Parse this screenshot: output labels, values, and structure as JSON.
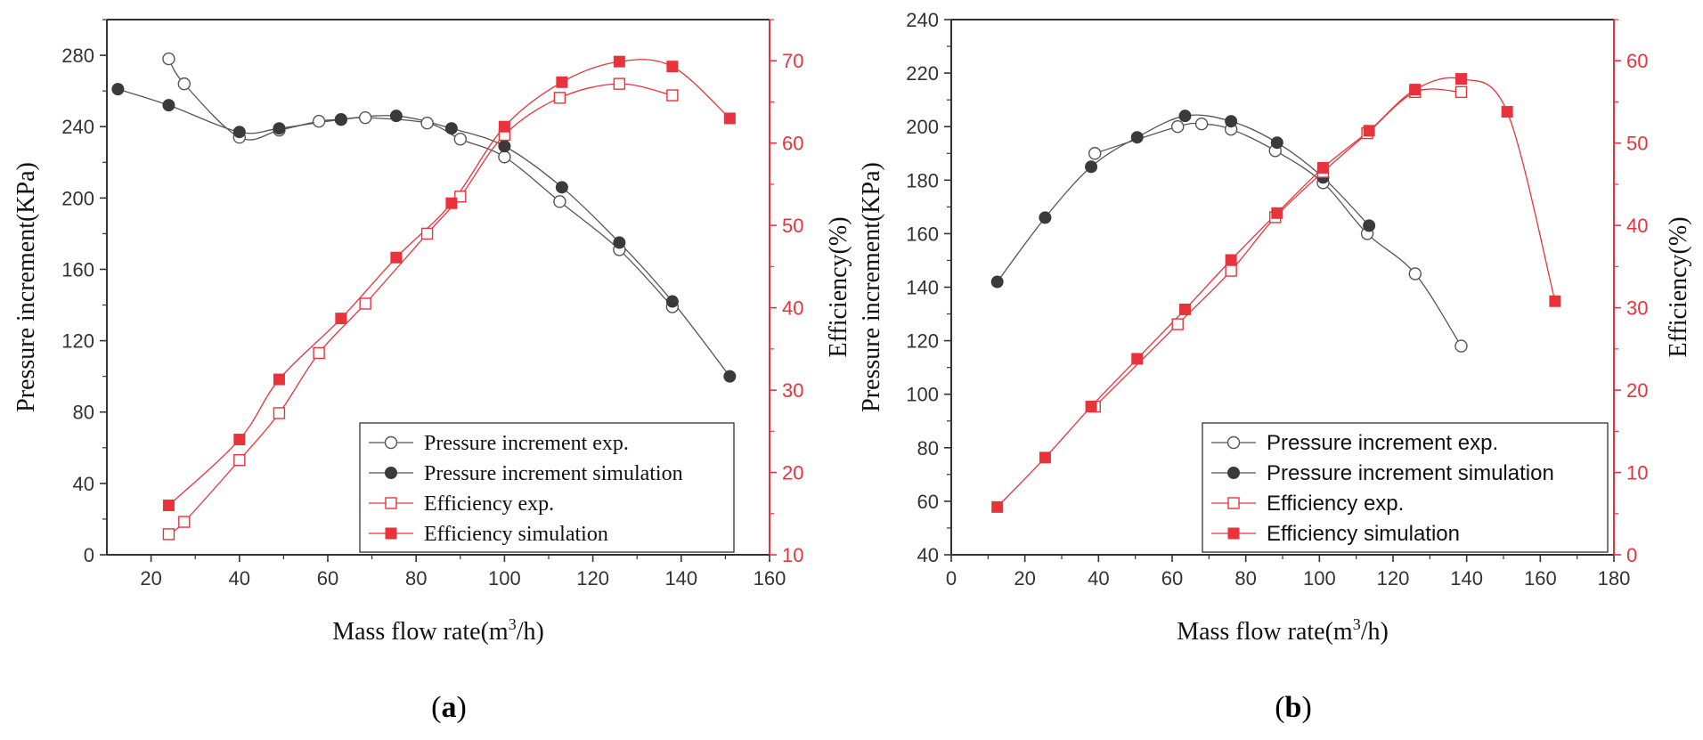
{
  "colors": {
    "pressure": "#555555",
    "efficiency": "#e8333d",
    "axis": "#333333"
  },
  "chart_data": [
    {
      "type": "line",
      "panel_label": "a",
      "xlabel": "Mass flow rate(m",
      "xlabel_sup": "3",
      "xlabel_suffix": "/h)",
      "ylabel": "Pressure increment(KPa)",
      "y2label": "Efficiency(%)",
      "xlim": [
        10,
        160
      ],
      "ylim": [
        0,
        300
      ],
      "y2lim": [
        10,
        75
      ],
      "xticks": [
        20,
        40,
        60,
        80,
        100,
        120,
        140,
        160
      ],
      "yticks": [
        0,
        40,
        80,
        120,
        160,
        200,
        240,
        280
      ],
      "y2ticks": [
        10,
        20,
        30,
        40,
        50,
        60,
        70
      ],
      "legend_position": "lower-right",
      "series": [
        {
          "name": "Pressure increment exp.",
          "axis": "left",
          "marker": "circle-open",
          "color": "#555555",
          "x": [
            24,
            27.5,
            40,
            49,
            58,
            63,
            68.5,
            82.5,
            90,
            100,
            112.5,
            126,
            138
          ],
          "y": [
            278,
            264,
            234,
            238,
            243,
            244,
            245,
            242,
            233,
            223,
            198,
            171,
            139
          ]
        },
        {
          "name": "Pressure increment simulation",
          "axis": "left",
          "marker": "circle-filled",
          "color": "#444444",
          "x": [
            12.5,
            24,
            40,
            49,
            63,
            75.5,
            88,
            100,
            113,
            126,
            138,
            151
          ],
          "y": [
            261,
            252,
            237,
            239,
            244,
            246,
            239,
            229,
            206,
            175,
            142,
            100
          ]
        },
        {
          "name": "Efficiency exp.",
          "axis": "right",
          "marker": "square-open",
          "color": "#e8333d",
          "x": [
            24,
            27.5,
            40,
            49,
            58,
            68.5,
            82.5,
            90,
            100,
            112.5,
            126,
            138
          ],
          "y": [
            12.5,
            14,
            21.5,
            27.2,
            34.5,
            40.5,
            49,
            53.5,
            61,
            65.5,
            67.2,
            65.8
          ]
        },
        {
          "name": "Efficiency simulation",
          "axis": "right",
          "marker": "square-filled",
          "color": "#e8333d",
          "x": [
            24,
            40,
            49,
            63,
            75.5,
            88,
            100,
            113,
            126,
            138,
            151
          ],
          "y": [
            16,
            24,
            31.3,
            38.7,
            46.1,
            52.7,
            62,
            67.4,
            69.9,
            69.3,
            63
          ]
        }
      ]
    },
    {
      "type": "line",
      "panel_label": "b",
      "xlabel": "Mass flow rate(m",
      "xlabel_sup": "3",
      "xlabel_suffix": "/h)",
      "ylabel": "Pressure increment(KPa)",
      "y2label": "Efficiency(%)",
      "xlim": [
        0,
        180
      ],
      "ylim": [
        40,
        240
      ],
      "y2lim": [
        0,
        65
      ],
      "xticks": [
        0,
        20,
        40,
        60,
        80,
        100,
        120,
        140,
        160,
        180
      ],
      "yticks": [
        40,
        60,
        80,
        100,
        120,
        140,
        160,
        180,
        200,
        220,
        240
      ],
      "y2ticks": [
        0,
        10,
        20,
        30,
        40,
        50,
        60
      ],
      "legend_position": "lower-right",
      "series": [
        {
          "name": "Pressure increment exp.",
          "axis": "left",
          "marker": "circle-open",
          "color": "#555555",
          "x": [
            39,
            61.5,
            68,
            76,
            88,
            101,
            113,
            126,
            138.5
          ],
          "y": [
            190,
            200,
            201,
            199,
            191,
            179,
            160,
            145,
            118
          ]
        },
        {
          "name": "Pressure increment simulation",
          "axis": "left",
          "marker": "circle-filled",
          "color": "#444444",
          "x": [
            12.5,
            25.5,
            38,
            50.5,
            63.5,
            76,
            88.5,
            101,
            113.5
          ],
          "y": [
            142,
            166,
            185,
            196,
            204,
            202,
            194,
            181,
            163
          ]
        },
        {
          "name": "Efficiency exp.",
          "axis": "right",
          "marker": "square-open",
          "color": "#e8333d",
          "x": [
            39,
            61.5,
            76,
            88,
            101,
            113,
            126,
            138.5
          ],
          "y": [
            18,
            28,
            34.5,
            41,
            46.5,
            51.2,
            56.2,
            56.2
          ]
        },
        {
          "name": "Efficiency simulation",
          "axis": "right",
          "marker": "square-filled",
          "color": "#e8333d",
          "x": [
            12.5,
            25.5,
            38,
            50.5,
            63.5,
            76,
            88.5,
            101,
            113.5,
            126,
            138.5,
            151,
            164
          ],
          "y": [
            5.8,
            11.8,
            18,
            23.8,
            29.8,
            35.8,
            41.5,
            47,
            51.5,
            56.5,
            57.8,
            53.8,
            30.8
          ]
        }
      ]
    }
  ]
}
